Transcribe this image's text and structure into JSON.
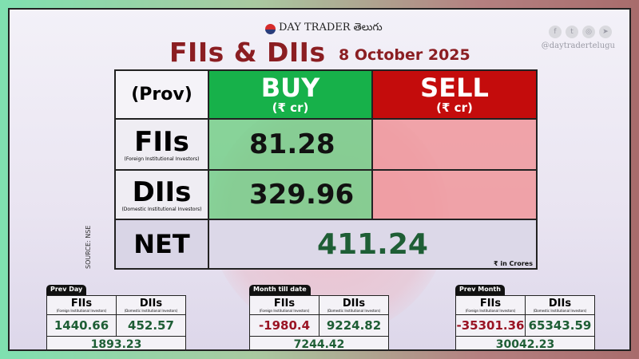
{
  "brand": {
    "name": "DAY TRADER తెలుగు",
    "handle": "@daytradertelugu",
    "social_icons": [
      "facebook-icon",
      "twitter-icon",
      "instagram-icon",
      "telegram-icon"
    ]
  },
  "title": "FIIs & DIIs",
  "date": "8 October 2025",
  "table": {
    "prov": "(Prov)",
    "buy": "BUY",
    "sell": "SELL",
    "unit_hdr": "(₹ cr)",
    "fii": {
      "label": "FIIs",
      "sub": "(Foreign Institutional Investors)",
      "buy": "81.28",
      "sell": ""
    },
    "dii": {
      "label": "DIIs",
      "sub": "(Domestic Institutional Investors)",
      "buy": "329.96",
      "sell": ""
    },
    "net": {
      "label": "NET",
      "value": "411.24",
      "unit": "₹ in Crores"
    }
  },
  "source": "SOURCE: NSE",
  "colors": {
    "buy": "#17b14a",
    "sell": "#c40c0c",
    "positive": "#1e5e35",
    "negative": "#9a1424"
  },
  "summaries": [
    {
      "tab": "Prev Day",
      "fii": "FIIs",
      "fii_sub": "(Foreign Institutional Investors)",
      "dii": "DIIs",
      "dii_sub": "(Domestic Institutional Investors)",
      "fii_val": "1440.66",
      "dii_val": "452.57",
      "total": "1893.23"
    },
    {
      "tab": "Month till date",
      "fii": "FIIs",
      "fii_sub": "(Foreign Institutional Investors)",
      "dii": "DIIs",
      "dii_sub": "(Domestic Institutional Investors)",
      "fii_val": "-1980.4",
      "dii_val": "9224.82",
      "total": "7244.42"
    },
    {
      "tab": "Prev Month",
      "fii": "FIIs",
      "fii_sub": "(Foreign Institutional Investors)",
      "dii": "DIIs",
      "dii_sub": "(Domestic Institutional Investors)",
      "fii_val": "-35301.36",
      "dii_val": "65343.59",
      "total": "30042.23"
    }
  ]
}
